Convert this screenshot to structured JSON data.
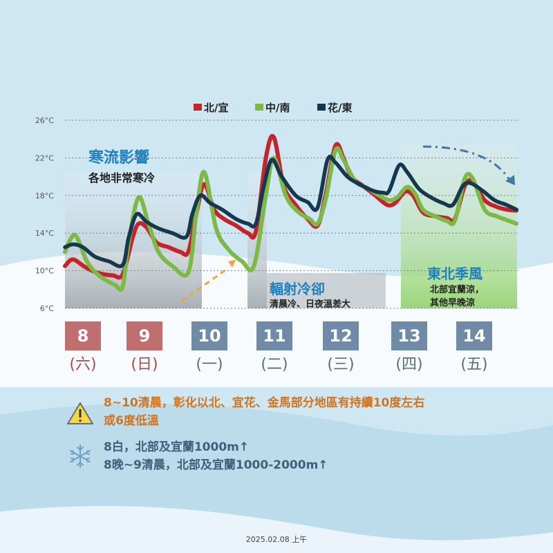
{
  "chart_data": {
    "type": "line",
    "yunit": "°C",
    "yticks": [
      "26°C",
      "22°C",
      "18°C",
      "14°C",
      "10°C",
      "6°C"
    ],
    "ylim": [
      6,
      26
    ],
    "grid": true,
    "legend_position": "top-center",
    "x_note": "time from Feb 8 00:00 to Feb 14 24:00, values in days since start",
    "series": [
      {
        "name": "北/宜",
        "color": "#c6242b",
        "points": [
          [
            0.0,
            10.5
          ],
          [
            0.2,
            11.2
          ],
          [
            0.5,
            10.4
          ],
          [
            0.8,
            9.8
          ],
          [
            1.2,
            9.5
          ],
          [
            1.45,
            9.6
          ],
          [
            1.7,
            13.5
          ],
          [
            1.85,
            15.0
          ],
          [
            2.05,
            14.6
          ],
          [
            2.3,
            13.0
          ],
          [
            2.6,
            12.5
          ],
          [
            2.9,
            12.0
          ],
          [
            3.1,
            12.0
          ],
          [
            3.3,
            16.0
          ],
          [
            3.5,
            19.2
          ],
          [
            3.75,
            16.5
          ],
          [
            4.0,
            15.5
          ],
          [
            4.3,
            14.8
          ],
          [
            4.6,
            14.0
          ],
          [
            4.8,
            14.2
          ],
          [
            5.05,
            22.0
          ],
          [
            5.25,
            24.2
          ],
          [
            5.5,
            19.0
          ],
          [
            5.8,
            17.0
          ],
          [
            6.1,
            15.5
          ],
          [
            6.35,
            14.8
          ],
          [
            6.55,
            18.0
          ],
          [
            6.8,
            23.3
          ],
          [
            7.0,
            22.0
          ],
          [
            7.2,
            20.0
          ],
          [
            7.5,
            19.0
          ],
          [
            7.8,
            18.0
          ],
          [
            8.1,
            17.0
          ],
          [
            8.3,
            17.2
          ],
          [
            8.55,
            18.4
          ],
          [
            8.75,
            18.0
          ],
          [
            9.0,
            16.2
          ],
          [
            9.3,
            15.8
          ],
          [
            9.6,
            15.6
          ],
          [
            9.8,
            15.5
          ],
          [
            10.05,
            19.0
          ],
          [
            10.25,
            19.5
          ],
          [
            10.55,
            17.5
          ],
          [
            10.85,
            16.8
          ],
          [
            11.1,
            16.5
          ],
          [
            11.35,
            16.4
          ]
        ]
      },
      {
        "name": "中/南",
        "color": "#7cb947",
        "points": [
          [
            0.0,
            12.0
          ],
          [
            0.25,
            13.8
          ],
          [
            0.55,
            11.0
          ],
          [
            0.85,
            9.5
          ],
          [
            1.25,
            8.5
          ],
          [
            1.45,
            8.3
          ],
          [
            1.6,
            13.0
          ],
          [
            1.85,
            17.8
          ],
          [
            2.1,
            15.0
          ],
          [
            2.35,
            12.0
          ],
          [
            2.7,
            10.5
          ],
          [
            3.1,
            9.8
          ],
          [
            3.3,
            16.0
          ],
          [
            3.5,
            20.5
          ],
          [
            3.8,
            14.5
          ],
          [
            4.1,
            12.3
          ],
          [
            4.45,
            11.0
          ],
          [
            4.75,
            10.5
          ],
          [
            5.05,
            18.0
          ],
          [
            5.25,
            22.0
          ],
          [
            5.55,
            18.0
          ],
          [
            5.85,
            16.3
          ],
          [
            6.15,
            15.5
          ],
          [
            6.35,
            15.0
          ],
          [
            6.55,
            17.5
          ],
          [
            6.8,
            22.8
          ],
          [
            7.0,
            21.8
          ],
          [
            7.3,
            19.5
          ],
          [
            7.6,
            18.8
          ],
          [
            7.9,
            18.0
          ],
          [
            8.15,
            17.5
          ],
          [
            8.35,
            17.8
          ],
          [
            8.6,
            18.9
          ],
          [
            8.8,
            18.2
          ],
          [
            9.0,
            16.5
          ],
          [
            9.3,
            15.8
          ],
          [
            9.6,
            15.3
          ],
          [
            9.8,
            15.3
          ],
          [
            10.05,
            19.8
          ],
          [
            10.25,
            19.8
          ],
          [
            10.55,
            16.5
          ],
          [
            10.85,
            15.8
          ],
          [
            11.1,
            15.4
          ],
          [
            11.35,
            15.0
          ]
        ]
      },
      {
        "name": "花/東",
        "color": "#14394f",
        "points": [
          [
            0.0,
            12.5
          ],
          [
            0.2,
            12.8
          ],
          [
            0.45,
            12.5
          ],
          [
            0.75,
            11.5
          ],
          [
            1.1,
            11.0
          ],
          [
            1.45,
            10.6
          ],
          [
            1.6,
            13.5
          ],
          [
            1.8,
            16.0
          ],
          [
            2.05,
            15.2
          ],
          [
            2.35,
            14.5
          ],
          [
            2.7,
            14.0
          ],
          [
            3.05,
            13.6
          ],
          [
            3.2,
            16.0
          ],
          [
            3.4,
            18.0
          ],
          [
            3.65,
            17.2
          ],
          [
            3.95,
            16.5
          ],
          [
            4.3,
            15.5
          ],
          [
            4.6,
            15.0
          ],
          [
            4.8,
            15.0
          ],
          [
            5.0,
            19.0
          ],
          [
            5.2,
            21.8
          ],
          [
            5.45,
            20.0
          ],
          [
            5.8,
            18.0
          ],
          [
            6.1,
            17.3
          ],
          [
            6.35,
            16.7
          ],
          [
            6.6,
            21.8
          ],
          [
            6.8,
            21.5
          ],
          [
            7.1,
            20.0
          ],
          [
            7.4,
            19.2
          ],
          [
            7.75,
            18.5
          ],
          [
            8.0,
            18.3
          ],
          [
            8.15,
            18.5
          ],
          [
            8.4,
            21.2
          ],
          [
            8.6,
            20.5
          ],
          [
            8.9,
            18.7
          ],
          [
            9.2,
            17.8
          ],
          [
            9.5,
            17.2
          ],
          [
            9.75,
            17.0
          ],
          [
            10.0,
            19.0
          ],
          [
            10.2,
            19.3
          ],
          [
            10.5,
            18.5
          ],
          [
            10.8,
            17.5
          ],
          [
            11.1,
            17.0
          ],
          [
            11.35,
            16.5
          ]
        ]
      }
    ],
    "days": [
      {
        "num": "8",
        "wd": "(六)",
        "kind": "red"
      },
      {
        "num": "9",
        "wd": "(日)",
        "kind": "red"
      },
      {
        "num": "10",
        "wd": "(一)",
        "kind": "blue"
      },
      {
        "num": "11",
        "wd": "(二)",
        "kind": "blue"
      },
      {
        "num": "12",
        "wd": "(三)",
        "kind": "blue"
      },
      {
        "num": "13",
        "wd": "(四)",
        "kind": "blue"
      },
      {
        "num": "14",
        "wd": "(五)",
        "kind": "blue"
      }
    ]
  },
  "annotations": {
    "cold_title": "寒流影響",
    "cold_sub": "各地非常寒冷",
    "rad_title": "輻射冷卻",
    "rad_sub": "清晨冷、日夜溫差大",
    "ne_title": "東北季風",
    "ne_sub1": "北部宜蘭涼，",
    "ne_sub2": "其他早晚涼"
  },
  "notes": {
    "warning_line1": "8~10清晨，彰化以北、宜花、金馬部分地區有持續10度左右",
    "warning_line2": "或6度低溫",
    "snow_line1": "8白，北部及宜蘭1000m↑",
    "snow_line2": "8晚~9清晨，北部及宜蘭1000-2000m↑"
  },
  "icons": {
    "warning": "warning-triangle-icon",
    "snow": "snowflake-icon"
  },
  "footer": {
    "timestamp": "2025.02.08 上午"
  }
}
